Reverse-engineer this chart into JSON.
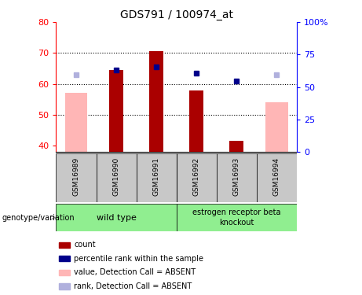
{
  "title": "GDS791 / 100974_at",
  "samples": [
    "GSM16989",
    "GSM16990",
    "GSM16991",
    "GSM16992",
    "GSM16993",
    "GSM16994"
  ],
  "ylim_left": [
    38,
    80
  ],
  "ylim_right": [
    0,
    100
  ],
  "yticks_left": [
    40,
    50,
    60,
    70,
    80
  ],
  "yticks_right": [
    0,
    25,
    50,
    75,
    100
  ],
  "yticklabels_right": [
    "0",
    "25",
    "50",
    "75",
    "100%"
  ],
  "red_bars": [
    null,
    64.5,
    70.5,
    58.0,
    41.5,
    null
  ],
  "pink_bars": [
    57.0,
    null,
    null,
    null,
    null,
    54.0
  ],
  "blue_dots": [
    null,
    64.5,
    65.5,
    63.5,
    61.0,
    null
  ],
  "lavender_dots": [
    63.0,
    null,
    null,
    null,
    null,
    63.0
  ],
  "tick_bg_color": "#c8c8c8",
  "red_color": "#aa0000",
  "pink_color": "#ffb6b6",
  "blue_color": "#00008b",
  "lavender_color": "#b0b0dd",
  "legend_items": [
    {
      "color": "#aa0000",
      "label": "count"
    },
    {
      "color": "#00008b",
      "label": "percentile rank within the sample"
    },
    {
      "color": "#ffb6b6",
      "label": "value, Detection Call = ABSENT"
    },
    {
      "color": "#b0b0dd",
      "label": "rank, Detection Call = ABSENT"
    }
  ],
  "genotype_label": "genotype/variation",
  "wt_label": "wild type",
  "ko_label": "estrogen receptor beta\nknockout"
}
